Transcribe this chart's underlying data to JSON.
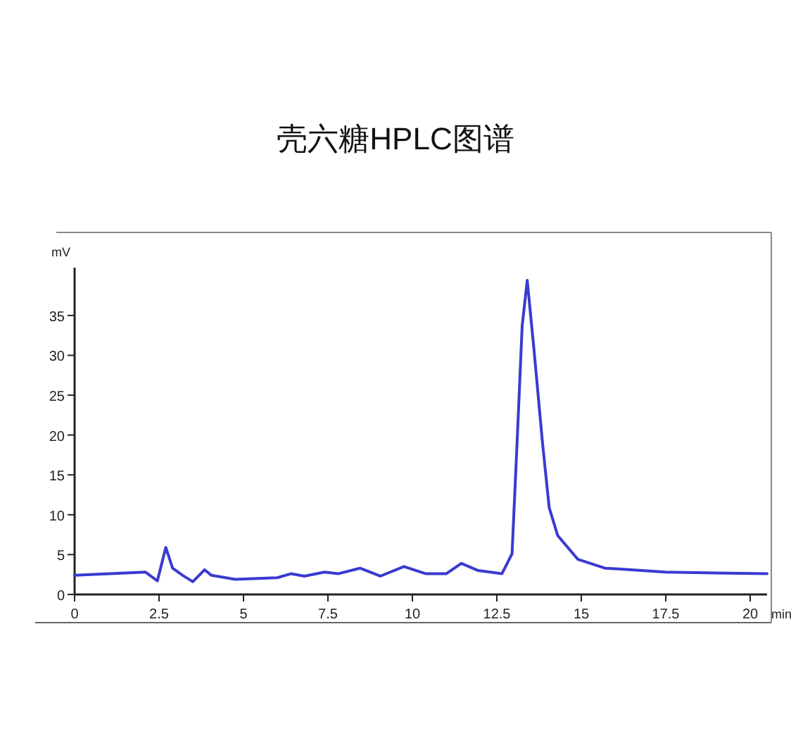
{
  "chart_data": {
    "type": "line",
    "title": "壳六糖HPLC图谱",
    "xlabel": "min",
    "ylabel": "mV",
    "xlim": [
      0,
      20.5
    ],
    "ylim": [
      0,
      41
    ],
    "xticks": [
      0,
      2.5,
      5,
      7.5,
      10,
      12.5,
      15,
      17.5,
      20
    ],
    "yticks": [
      0,
      5,
      10,
      15,
      20,
      25,
      30,
      35
    ],
    "line_style": "solid",
    "series": [
      {
        "color": "#3a3ad0",
        "x": [
          0,
          2.1,
          2.45,
          2.7,
          2.9,
          3.2,
          3.5,
          3.85,
          4.05,
          4.75,
          6.0,
          6.4,
          6.8,
          7.4,
          7.8,
          8.45,
          9.05,
          9.75,
          10.4,
          11.0,
          11.45,
          11.95,
          12.65,
          12.95,
          13.1,
          13.25,
          13.4,
          13.6,
          13.85,
          14.05,
          14.3,
          14.9,
          15.7,
          16.1,
          17.5,
          20.5
        ],
        "values": [
          2.4,
          2.8,
          1.7,
          5.9,
          3.3,
          2.4,
          1.6,
          3.1,
          2.4,
          1.9,
          2.1,
          2.6,
          2.3,
          2.8,
          2.6,
          3.3,
          2.3,
          3.5,
          2.6,
          2.6,
          3.9,
          3.0,
          2.6,
          5.1,
          19.1,
          33.7,
          39.4,
          30.7,
          19.1,
          10.9,
          7.4,
          4.4,
          3.3,
          3.2,
          2.8,
          2.6
        ]
      }
    ]
  }
}
